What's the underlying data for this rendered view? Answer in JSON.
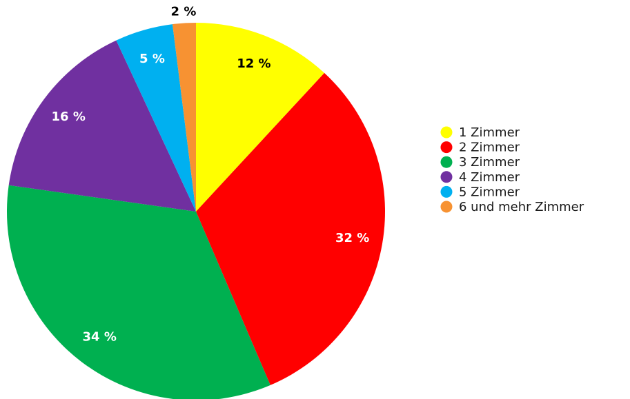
{
  "chart_data": {
    "type": "pie",
    "categories": [
      "1 Zimmer",
      "2 Zimmer",
      "3 Zimmer",
      "4 Zimmer",
      "5 Zimmer",
      "6 und mehr Zimmer"
    ],
    "values": [
      12,
      32,
      34,
      16,
      5,
      2
    ],
    "value_labels": [
      "12 %",
      "32 %",
      "34 %",
      "16 %",
      "5 %",
      "2 %"
    ],
    "colors": [
      "#ffff00",
      "#ff0000",
      "#00b050",
      "#7030a0",
      "#00b0f0",
      "#f79232"
    ],
    "legend": "right"
  }
}
